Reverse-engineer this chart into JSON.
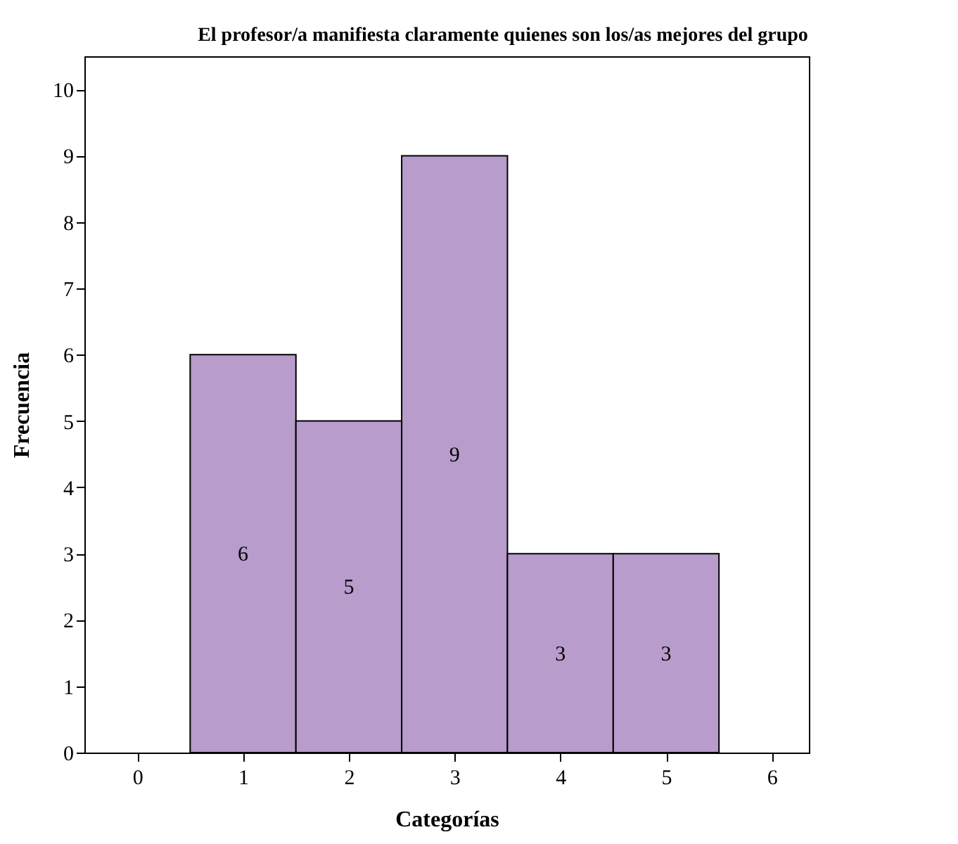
{
  "chart_data": {
    "type": "histogram",
    "title": "El profesor/a manifiesta claramente quienes son los/as mejores del grupo",
    "xlabel": "Categorías",
    "ylabel": "Frecuencia",
    "bins": [
      0.5,
      1.5,
      2.5,
      3.5,
      4.5,
      5.5
    ],
    "values": [
      6,
      5,
      9,
      3,
      3
    ],
    "color": "#b89ccb",
    "xlim": [
      -0.5,
      6.35
    ],
    "xticks": [
      0,
      1,
      2,
      3,
      4,
      5,
      6
    ],
    "ylim": [
      0,
      10.5
    ],
    "yticks": [
      0,
      1,
      2,
      3,
      4,
      5,
      6,
      7,
      8,
      9,
      10
    ],
    "data_labels": true,
    "grid": false
  }
}
